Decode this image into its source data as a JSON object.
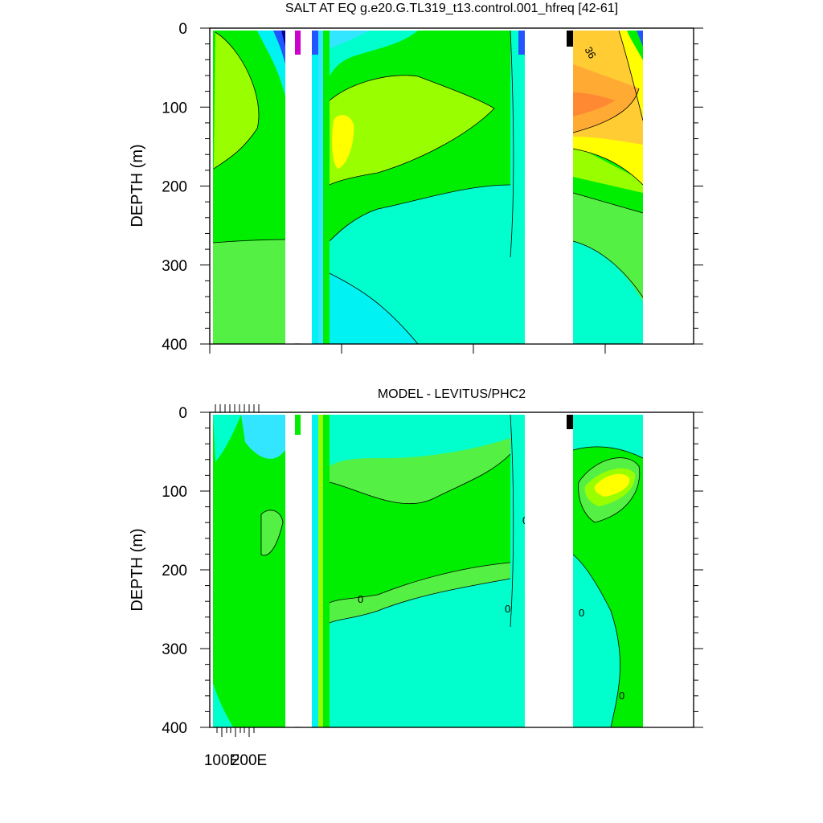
{
  "colors": {
    "green": "#00ee00",
    "light_green": "#55f044",
    "yellow_green": "#99ff00",
    "yellow": "#ffff00",
    "gold": "#ffcc33",
    "orange": "#ffaa33",
    "dark_orange": "#ff8833",
    "aquamarine": "#00ffcc",
    "cyan": "#00f2f2",
    "light_cyan": "#33e6ff",
    "blue": "#2255ff",
    "navy": "#000099",
    "magenta": "#cc00cc",
    "land": "#ffffff"
  },
  "chart_data": [
    {
      "type": "contour",
      "title": "SALT AT EQ g.e20.G.TL319_t13.control.001_hfreq [42-61]",
      "ylabel": "DEPTH (m)",
      "xlabel": "",
      "ylim": [
        400,
        0
      ],
      "yticks": [
        0,
        100,
        200,
        300,
        400
      ],
      "xticks": [],
      "contour_labels": [
        {
          "text": "36",
          "depth": 30
        }
      ],
      "grid": false
    },
    {
      "type": "contour",
      "title": "MODEL - LEVITUS/PHC2",
      "ylabel": "DEPTH (m)",
      "xlabel": "",
      "ylim": [
        400,
        0
      ],
      "yticks": [
        0,
        100,
        200,
        300,
        400
      ],
      "xticks": [
        "100E",
        "200E"
      ],
      "contour_labels": [
        {
          "text": "0",
          "depth": 140
        },
        {
          "text": "0",
          "depth": 240
        },
        {
          "text": "0",
          "depth": 250
        },
        {
          "text": "0",
          "depth": 255
        },
        {
          "text": "0",
          "depth": 360
        }
      ],
      "grid": false
    }
  ]
}
